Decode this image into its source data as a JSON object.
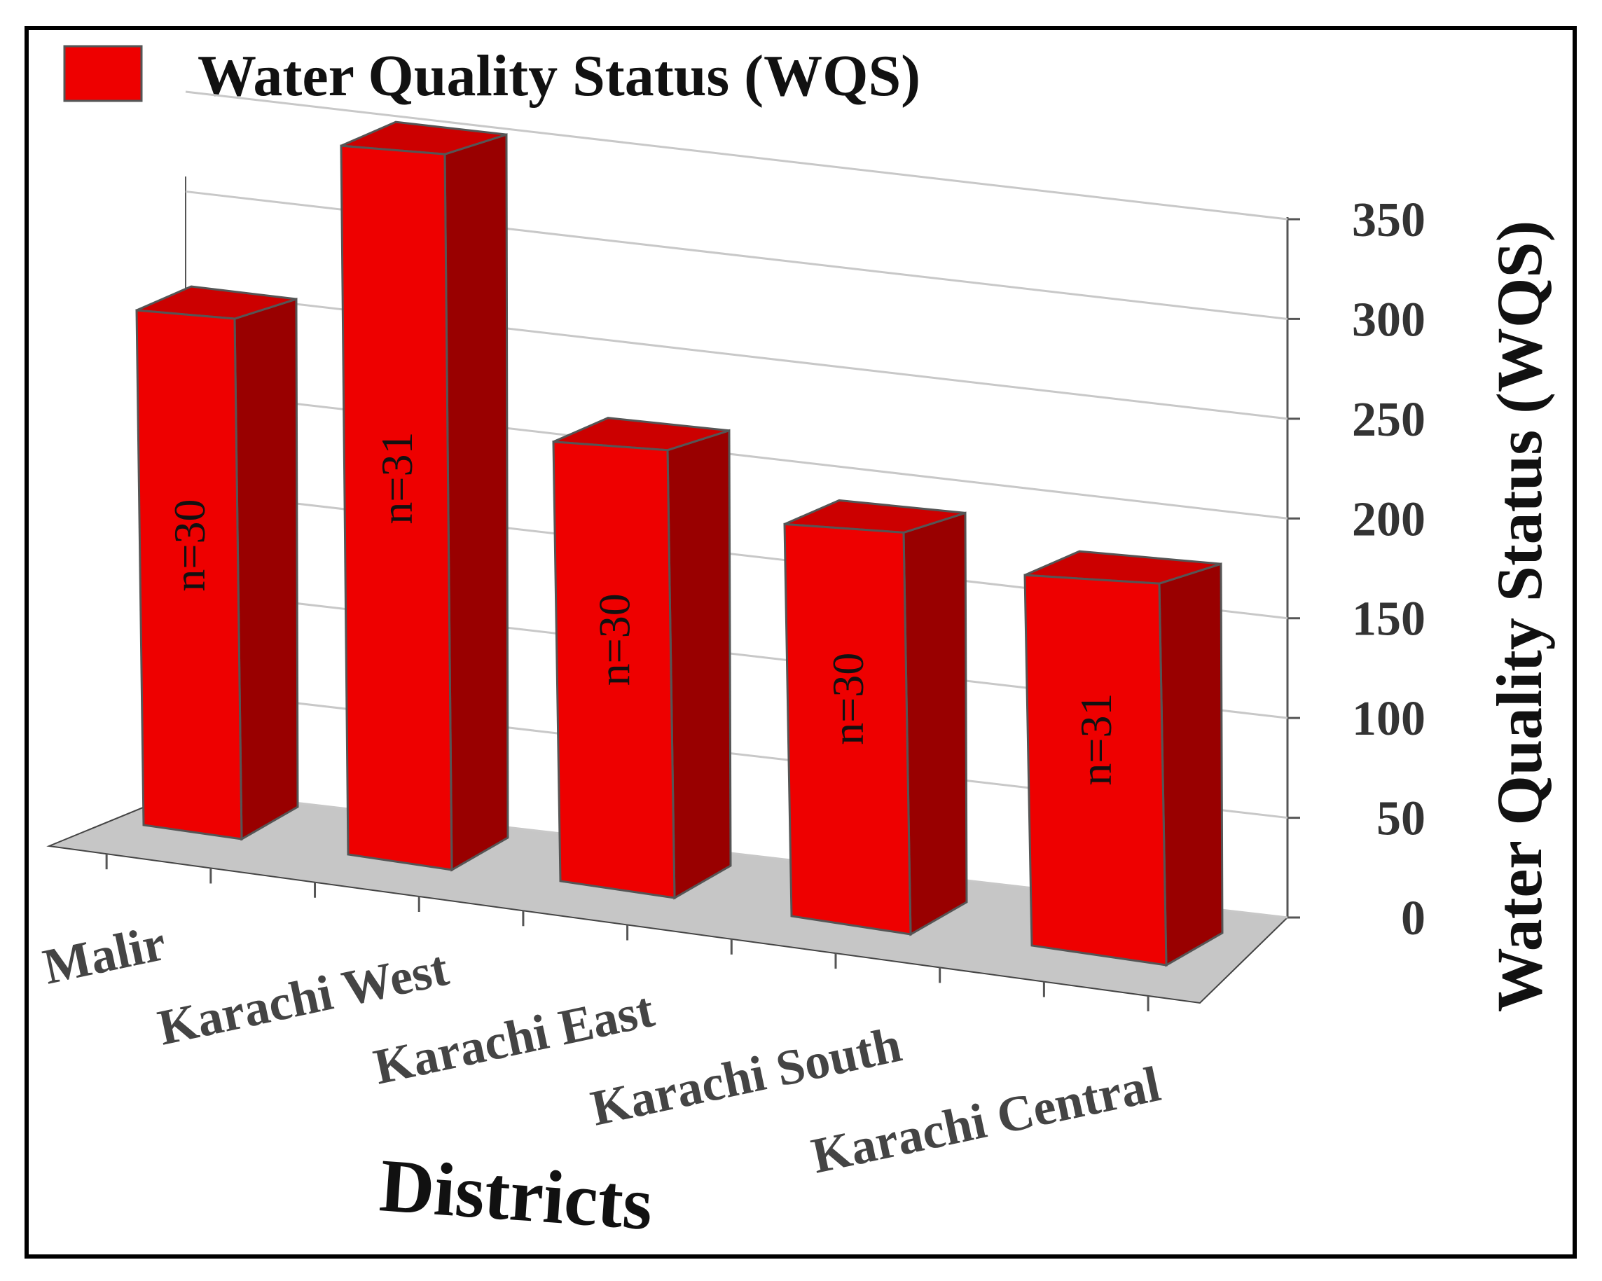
{
  "chart_data": {
    "type": "bar",
    "legend": {
      "label": "Water Quality Status (WQS)",
      "color": "#ee0000",
      "placement": "top-left"
    },
    "categories": [
      "Malir",
      "Karachi West",
      "Karachi East",
      "Karachi South",
      "Karachi Central"
    ],
    "series": [
      {
        "name": "Water Quality Status (WQS)",
        "values": [
          235,
          325,
          200,
          178,
          168
        ]
      }
    ],
    "sample_labels": [
      "n=30",
      "n=31",
      "n=30",
      "n=30",
      "n=31"
    ],
    "xlabel": "Districts",
    "ylabel": "Water Quality Status (WQS)",
    "ylim": [
      0,
      350
    ],
    "yticks": [
      0,
      50,
      100,
      150,
      200,
      250,
      300,
      350
    ],
    "grid": true,
    "style": "3d",
    "colors": {
      "bar_front": "#ee0000",
      "bar_side": "#990000",
      "bar_top": "#cc0000",
      "floor": "#c6c6c6",
      "grid": "#c8c8c8"
    }
  }
}
